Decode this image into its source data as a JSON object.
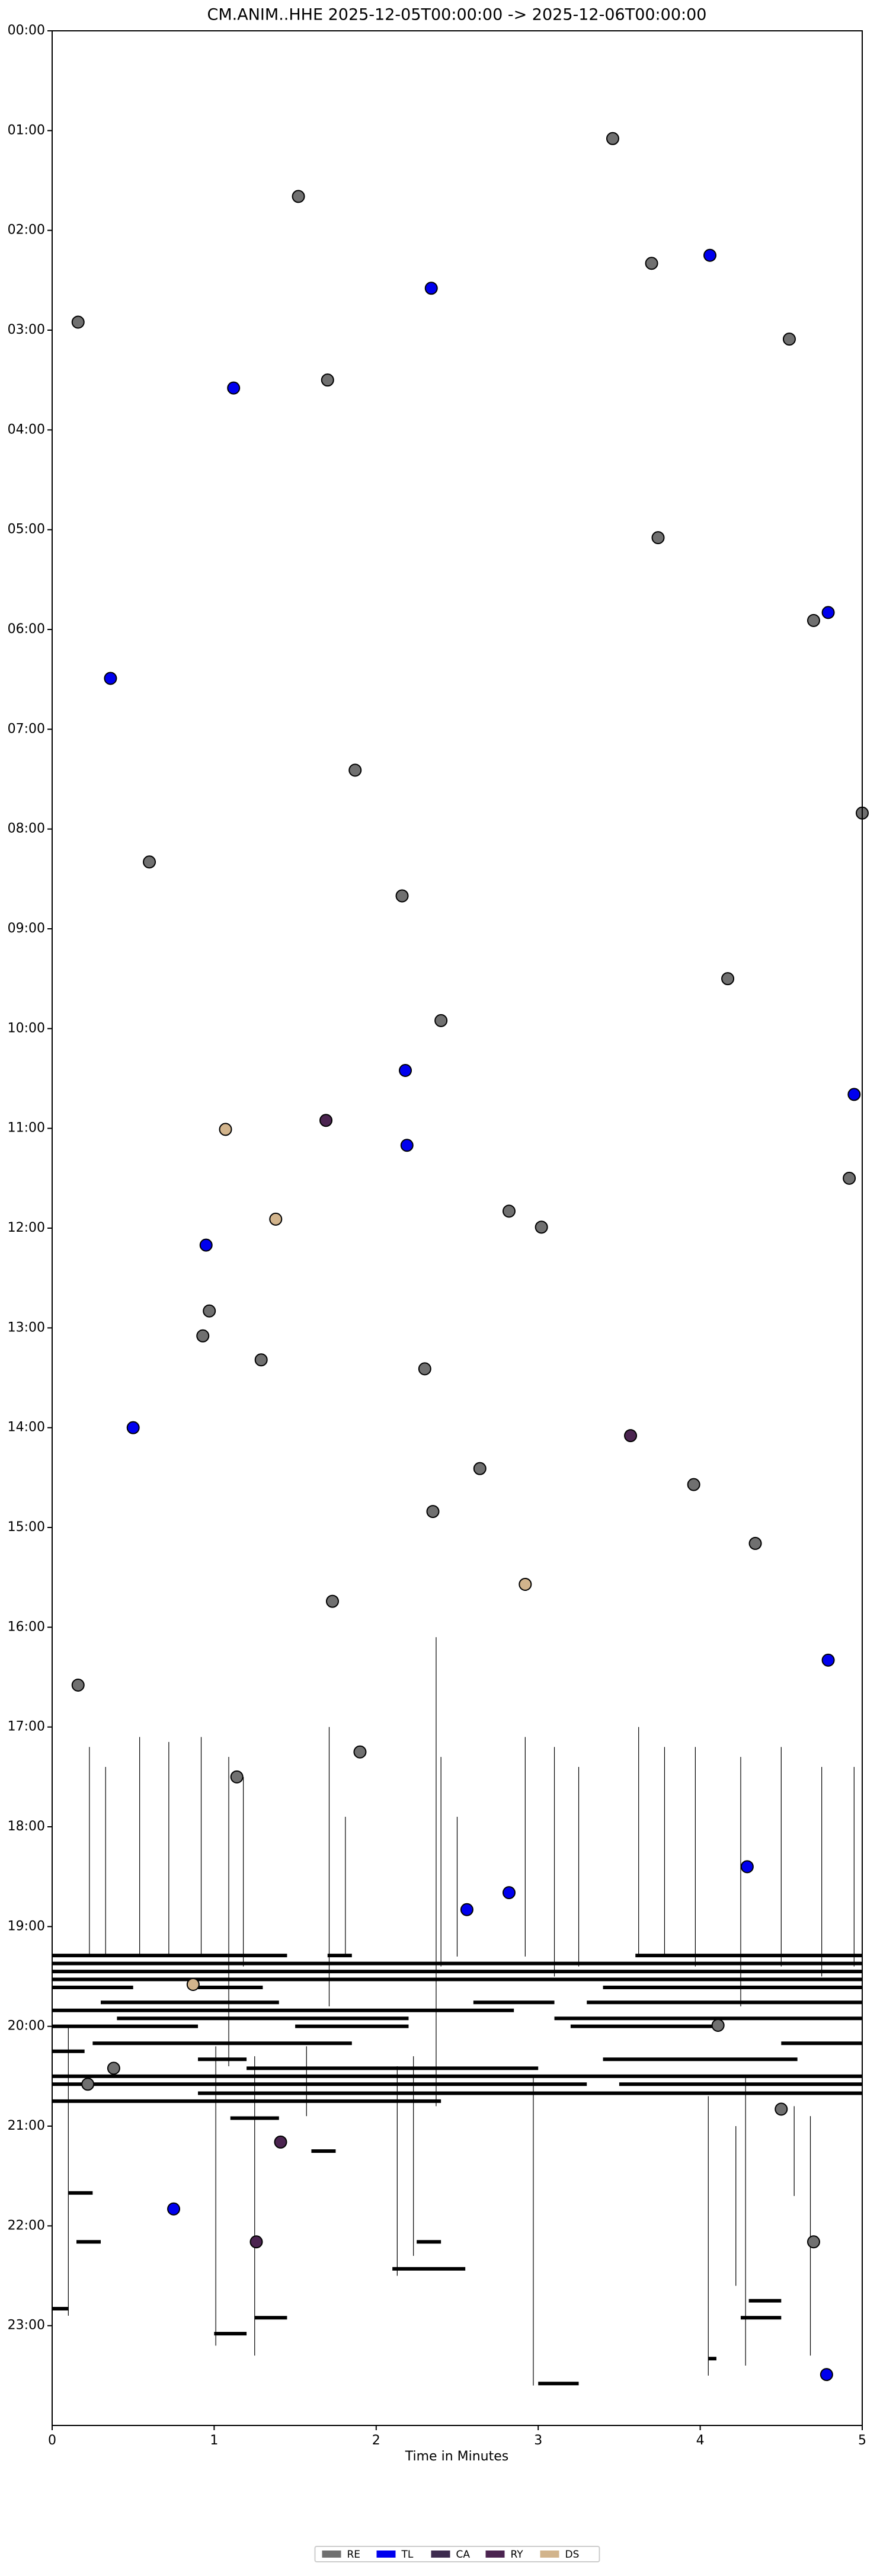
{
  "chart_data": {
    "type": "dayplot",
    "title": "CM.ANIM..HHE  2025-12-05T00:00:00 -> 2025-12-06T00:00:00",
    "x_label": "Time in Minutes",
    "xlim": [
      0,
      5
    ],
    "xticks": [
      0,
      1,
      2,
      3,
      4,
      5
    ],
    "ylim": [
      24,
      0
    ],
    "yticks": [
      {
        "value": 0,
        "label": "00:00"
      },
      {
        "value": 1,
        "label": "01:00"
      },
      {
        "value": 2,
        "label": "02:00"
      },
      {
        "value": 3,
        "label": "03:00"
      },
      {
        "value": 4,
        "label": "04:00"
      },
      {
        "value": 5,
        "label": "05:00"
      },
      {
        "value": 6,
        "label": "06:00"
      },
      {
        "value": 7,
        "label": "07:00"
      },
      {
        "value": 8,
        "label": "08:00"
      },
      {
        "value": 9,
        "label": "09:00"
      },
      {
        "value": 10,
        "label": "10:00"
      },
      {
        "value": 11,
        "label": "11:00"
      },
      {
        "value": 12,
        "label": "12:00"
      },
      {
        "value": 13,
        "label": "13:00"
      },
      {
        "value": 14,
        "label": "14:00"
      },
      {
        "value": 15,
        "label": "15:00"
      },
      {
        "value": 16,
        "label": "16:00"
      },
      {
        "value": 17,
        "label": "17:00"
      },
      {
        "value": 18,
        "label": "18:00"
      },
      {
        "value": 19,
        "label": "19:00"
      },
      {
        "value": 20,
        "label": "20:00"
      },
      {
        "value": 21,
        "label": "21:00"
      },
      {
        "value": 22,
        "label": "22:00"
      },
      {
        "value": 23,
        "label": "23:00"
      }
    ],
    "legend": "bottom",
    "series": [
      {
        "name": "RE",
        "color": "#707070",
        "x": [
          3.46,
          1.52,
          3.7,
          0.16,
          4.55,
          1.7,
          3.74,
          4.7,
          1.87,
          5.0,
          0.6,
          2.16,
          4.17,
          2.4,
          4.92,
          2.82,
          3.02,
          0.97,
          0.93,
          1.29,
          2.3,
          2.64,
          3.96,
          2.35,
          4.34,
          1.73,
          0.16,
          1.9,
          1.14,
          4.11,
          0.38,
          0.22,
          4.5,
          4.7
        ],
        "values": [
          1.08,
          1.66,
          2.33,
          2.92,
          3.09,
          3.5,
          5.08,
          5.91,
          7.41,
          7.84,
          8.33,
          8.67,
          9.5,
          9.92,
          11.5,
          11.83,
          11.99,
          12.83,
          13.08,
          13.32,
          13.41,
          14.41,
          14.57,
          14.84,
          15.16,
          15.74,
          16.58,
          17.25,
          17.5,
          19.99,
          20.42,
          20.58,
          20.83,
          22.16
        ]
      },
      {
        "name": "TL",
        "color": "#0000ee",
        "x": [
          4.06,
          2.34,
          1.12,
          4.79,
          0.36,
          2.18,
          4.95,
          2.19,
          0.95,
          0.5,
          4.79,
          4.29,
          2.82,
          2.56,
          0.75,
          4.78
        ],
        "values": [
          2.25,
          2.58,
          3.58,
          5.83,
          6.49,
          10.42,
          10.66,
          11.17,
          12.17,
          14.0,
          16.33,
          18.4,
          18.66,
          18.83,
          21.83,
          23.49
        ]
      },
      {
        "name": "CA",
        "color": "#3d2b4f",
        "x": [],
        "values": []
      },
      {
        "name": "RY",
        "color": "#4b2450",
        "x": [
          1.69,
          3.57,
          1.41,
          1.26
        ],
        "values": [
          10.92,
          14.08,
          21.16,
          22.16
        ]
      },
      {
        "name": "DS",
        "color": "#d2b48c",
        "x": [
          1.07,
          1.38,
          2.92,
          0.87
        ],
        "values": [
          11.01,
          11.91,
          15.57,
          19.58
        ]
      }
    ],
    "traces": [
      {
        "y": 19.29,
        "x": [
          0,
          1.45
        ]
      },
      {
        "y": 19.29,
        "x": [
          1.7,
          1.85
        ]
      },
      {
        "y": 19.29,
        "x": [
          3.6,
          5
        ]
      },
      {
        "y": 19.37,
        "x": [
          0,
          5
        ]
      },
      {
        "y": 19.45,
        "x": [
          0,
          5
        ]
      },
      {
        "y": 19.53,
        "x": [
          0,
          5
        ]
      },
      {
        "y": 19.61,
        "x": [
          0,
          0.5
        ]
      },
      {
        "y": 19.61,
        "x": [
          0.9,
          1.3
        ]
      },
      {
        "y": 19.61,
        "x": [
          3.4,
          5
        ]
      },
      {
        "y": 19.76,
        "x": [
          0.3,
          1.4
        ]
      },
      {
        "y": 19.76,
        "x": [
          2.6,
          3.1
        ]
      },
      {
        "y": 19.76,
        "x": [
          3.3,
          5
        ]
      },
      {
        "y": 19.84,
        "x": [
          0,
          2.85
        ]
      },
      {
        "y": 19.92,
        "x": [
          0.4,
          2.2
        ]
      },
      {
        "y": 19.92,
        "x": [
          3.1,
          5
        ]
      },
      {
        "y": 20.0,
        "x": [
          0,
          0.9
        ]
      },
      {
        "y": 20.0,
        "x": [
          1.5,
          2.2
        ]
      },
      {
        "y": 20.0,
        "x": [
          3.2,
          4.1
        ]
      },
      {
        "y": 20.17,
        "x": [
          0.25,
          1.85
        ]
      },
      {
        "y": 20.17,
        "x": [
          4.5,
          5
        ]
      },
      {
        "y": 20.25,
        "x": [
          0,
          0.2
        ]
      },
      {
        "y": 20.33,
        "x": [
          0.9,
          1.2
        ]
      },
      {
        "y": 20.33,
        "x": [
          3.4,
          4.6
        ]
      },
      {
        "y": 20.42,
        "x": [
          1.2,
          3.0
        ]
      },
      {
        "y": 20.5,
        "x": [
          0,
          5
        ]
      },
      {
        "y": 20.58,
        "x": [
          0,
          3.3
        ]
      },
      {
        "y": 20.58,
        "x": [
          3.5,
          5
        ]
      },
      {
        "y": 20.67,
        "x": [
          0.9,
          5
        ]
      },
      {
        "y": 20.75,
        "x": [
          0,
          2.4
        ]
      },
      {
        "y": 20.92,
        "x": [
          1.1,
          1.4
        ]
      },
      {
        "y": 21.25,
        "x": [
          1.6,
          1.75
        ]
      },
      {
        "y": 21.67,
        "x": [
          0.1,
          0.25
        ]
      },
      {
        "y": 22.16,
        "x": [
          0.15,
          0.3
        ]
      },
      {
        "y": 22.16,
        "x": [
          2.25,
          2.4
        ]
      },
      {
        "y": 22.43,
        "x": [
          2.1,
          2.55
        ]
      },
      {
        "y": 22.83,
        "x": [
          0,
          0.1
        ]
      },
      {
        "y": 22.92,
        "x": [
          1.25,
          1.45
        ]
      },
      {
        "y": 23.08,
        "x": [
          1.0,
          1.2
        ]
      },
      {
        "y": 22.75,
        "x": [
          4.3,
          4.5
        ]
      },
      {
        "y": 23.33,
        "x": [
          4.05,
          4.1
        ]
      },
      {
        "y": 23.58,
        "x": [
          3.0,
          3.25
        ]
      },
      {
        "y": 22.92,
        "x": [
          4.25,
          4.5
        ]
      }
    ],
    "spikes": [
      {
        "x": 0.23,
        "y": [
          17.2,
          19.3
        ]
      },
      {
        "x": 0.33,
        "y": [
          17.4,
          19.3
        ]
      },
      {
        "x": 0.54,
        "y": [
          17.1,
          19.3
        ]
      },
      {
        "x": 0.72,
        "y": [
          17.15,
          19.3
        ]
      },
      {
        "x": 0.92,
        "y": [
          17.1,
          19.3
        ]
      },
      {
        "x": 1.09,
        "y": [
          17.3,
          20.4
        ]
      },
      {
        "x": 1.18,
        "y": [
          17.5,
          19.4
        ]
      },
      {
        "x": 1.71,
        "y": [
          17.0,
          19.8
        ]
      },
      {
        "x": 1.81,
        "y": [
          17.9,
          19.3
        ]
      },
      {
        "x": 2.37,
        "y": [
          16.1,
          20.8
        ]
      },
      {
        "x": 2.4,
        "y": [
          17.3,
          19.4
        ]
      },
      {
        "x": 2.5,
        "y": [
          17.9,
          19.3
        ]
      },
      {
        "x": 2.92,
        "y": [
          17.1,
          19.3
        ]
      },
      {
        "x": 3.1,
        "y": [
          17.2,
          19.5
        ]
      },
      {
        "x": 3.25,
        "y": [
          17.4,
          19.4
        ]
      },
      {
        "x": 3.62,
        "y": [
          17.0,
          19.3
        ]
      },
      {
        "x": 3.78,
        "y": [
          17.2,
          19.3
        ]
      },
      {
        "x": 3.97,
        "y": [
          17.2,
          19.4
        ]
      },
      {
        "x": 4.25,
        "y": [
          17.3,
          19.8
        ]
      },
      {
        "x": 4.5,
        "y": [
          17.2,
          19.4
        ]
      },
      {
        "x": 4.75,
        "y": [
          17.4,
          19.5
        ]
      },
      {
        "x": 4.95,
        "y": [
          17.4,
          19.4
        ]
      },
      {
        "x": 1.01,
        "y": [
          20.2,
          23.2
        ]
      },
      {
        "x": 1.25,
        "y": [
          20.3,
          23.3
        ]
      },
      {
        "x": 2.13,
        "y": [
          20.4,
          22.5
        ]
      },
      {
        "x": 2.23,
        "y": [
          20.3,
          22.3
        ]
      },
      {
        "x": 2.97,
        "y": [
          20.5,
          23.6
        ]
      },
      {
        "x": 4.05,
        "y": [
          20.7,
          23.5
        ]
      },
      {
        "x": 4.28,
        "y": [
          20.5,
          23.4
        ]
      },
      {
        "x": 4.22,
        "y": [
          21.0,
          22.6
        ]
      },
      {
        "x": 0.1,
        "y": [
          20.0,
          22.9
        ]
      },
      {
        "x": 4.58,
        "y": [
          20.8,
          21.7
        ]
      },
      {
        "x": 4.68,
        "y": [
          20.9,
          23.3
        ]
      },
      {
        "x": 1.57,
        "y": [
          20.2,
          20.9
        ]
      }
    ]
  }
}
